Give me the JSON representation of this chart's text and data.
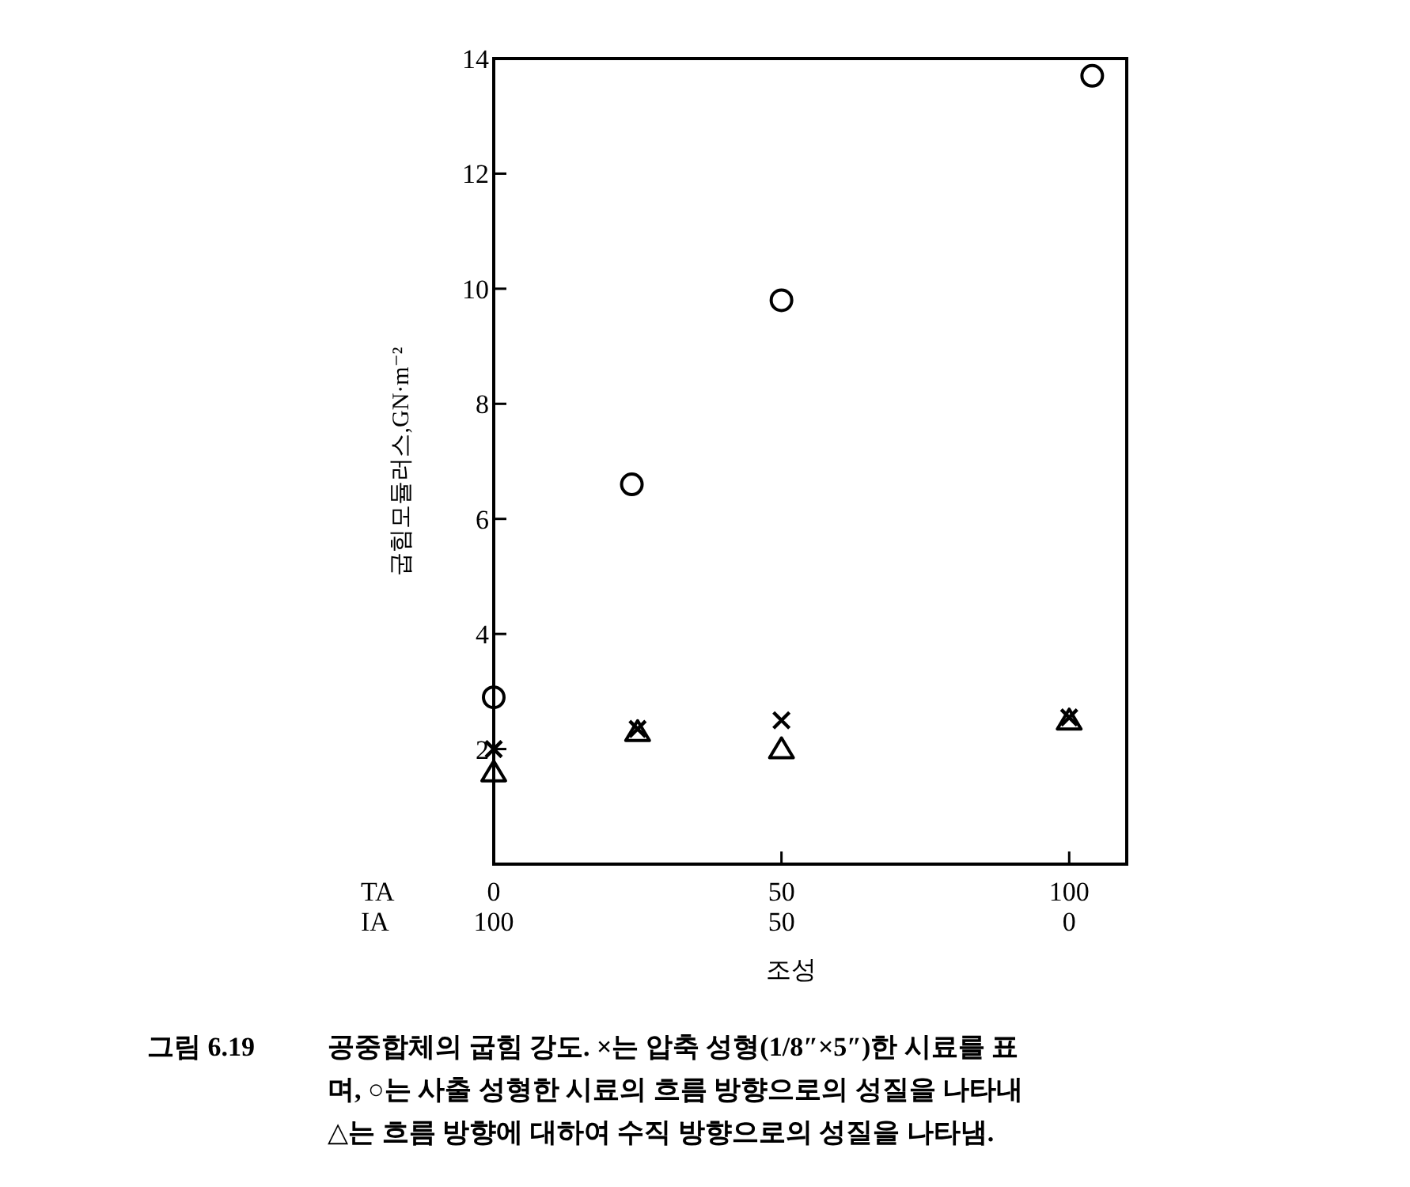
{
  "chart_data": {
    "type": "scatter",
    "xlabel": "조성",
    "ylabel": "굽힘모듈러스,GN·m⁻²",
    "xlim": [
      0,
      110
    ],
    "ylim": [
      0,
      14
    ],
    "xticks": [
      0,
      50,
      100
    ],
    "yticks": [
      2,
      4,
      6,
      8,
      10,
      12,
      14
    ],
    "grid": false,
    "series": [
      {
        "marker": "circle",
        "color": "#000000",
        "x": [
          0,
          24,
          50,
          104
        ],
        "values": [
          2.9,
          6.6,
          9.8,
          13.7
        ]
      },
      {
        "marker": "cross",
        "color": "#000000",
        "x": [
          0,
          25,
          50,
          100
        ],
        "values": [
          2.0,
          2.35,
          2.5,
          2.55
        ]
      },
      {
        "marker": "triangle",
        "color": "#000000",
        "x": [
          0,
          25,
          50,
          100
        ],
        "values": [
          1.6,
          2.3,
          2.0,
          2.5
        ]
      }
    ],
    "annotations": [
      "TA",
      "IA",
      "그림 6.19",
      "공중합체의 굽힘 강도. ×는 압축 성형(1/8″×5″)한 시료를 표",
      "며, ○는 사출 성형한 시료의 흐름 방향으로의 성질을 나타내",
      "△는 흐름 방향에 대하여 수직 방향으로의 성질을 나타냄.",
      "100",
      "50",
      "0"
    ]
  }
}
